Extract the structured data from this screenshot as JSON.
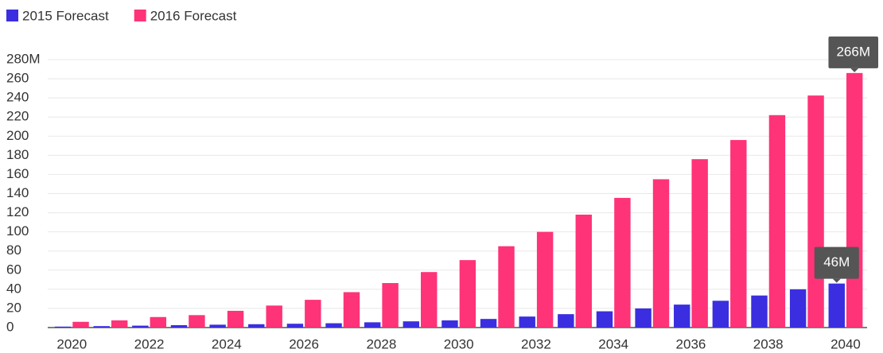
{
  "chart_data": {
    "type": "bar",
    "categories": [
      "2020",
      null,
      "2022",
      null,
      "2024",
      null,
      "2026",
      null,
      "2028",
      null,
      "2030",
      null,
      "2032",
      null,
      "2034",
      null,
      "2036",
      null,
      "2038",
      null,
      "2040"
    ],
    "series": [
      {
        "name": "2015 Forecast",
        "color": "#3a2ee0",
        "values": [
          1,
          1.5,
          2,
          2.5,
          3,
          3.5,
          4,
          4.5,
          5.5,
          6.5,
          7.5,
          9,
          11.5,
          14,
          17,
          20,
          24,
          28,
          33.5,
          40,
          46
        ],
        "value_labels": [
          null,
          null,
          null,
          null,
          null,
          null,
          null,
          null,
          null,
          null,
          null,
          null,
          null,
          null,
          null,
          null,
          null,
          null,
          null,
          null,
          "46M"
        ]
      },
      {
        "name": "2016 Forecast",
        "color": "#ff3377",
        "values": [
          6,
          7.5,
          11,
          13,
          17.5,
          23,
          29,
          37,
          46.5,
          58,
          70.5,
          85,
          100,
          118,
          135.5,
          155,
          176,
          196,
          222,
          242.5,
          266
        ],
        "value_labels": [
          null,
          null,
          null,
          null,
          null,
          null,
          null,
          null,
          null,
          null,
          null,
          null,
          null,
          null,
          null,
          null,
          null,
          null,
          null,
          null,
          "266M"
        ]
      }
    ],
    "ylim": [
      0,
      280
    ],
    "yticks": [
      0,
      20,
      40,
      60,
      80,
      100,
      120,
      140,
      160,
      180,
      200,
      220,
      240,
      260,
      {
        "value": 280,
        "label": "280M"
      }
    ],
    "grid": true,
    "legend": "top-left"
  }
}
